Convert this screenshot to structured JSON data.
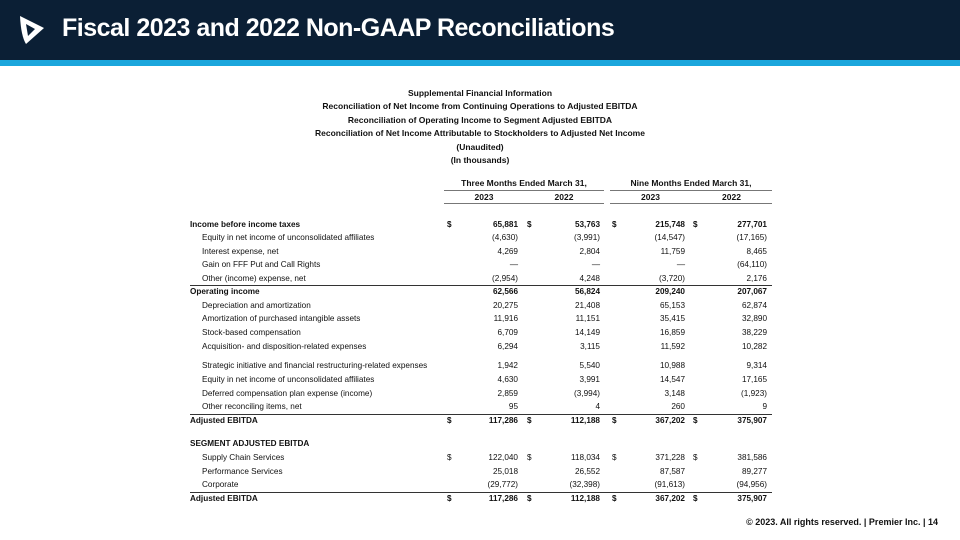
{
  "header": {
    "title": "Fiscal 2023 and 2022 Non-GAAP Reconciliations",
    "logo": "premier-logo"
  },
  "subtitles": [
    "Supplemental Financial Information",
    "Reconciliation of Net Income from Continuing Operations to Adjusted EBITDA",
    "Reconciliation of Operating Income to Segment Adjusted EBITDA",
    "Reconciliation of Net Income Attributable to Stockholders to Adjusted Net Income",
    "(Unaudited)",
    "(In thousands)"
  ],
  "columns": {
    "three_months": "Three Months Ended March 31,",
    "nine_months": "Nine Months Ended March 31,",
    "years": [
      "2023",
      "2022",
      "2023",
      "2022"
    ]
  },
  "rows": [
    {
      "label": "Income before income taxes",
      "bold": true,
      "dollar": true,
      "values": [
        "65,881",
        "53,763",
        "215,748",
        "277,701"
      ]
    },
    {
      "label": "Equity in net income of unconsolidated affiliates",
      "values": [
        "(4,630)",
        "(3,991)",
        "(14,547)",
        "(17,165)"
      ]
    },
    {
      "label": "Interest expense, net",
      "values": [
        "4,269",
        "2,804",
        "11,759",
        "8,465"
      ]
    },
    {
      "label": "Gain on FFF Put and Call Rights",
      "values": [
        "—",
        "—",
        "—",
        "(64,110)"
      ]
    },
    {
      "label": "Other (income) expense, net",
      "values": [
        "(2,954)",
        "4,248",
        "(3,720)",
        "2,176"
      ]
    },
    {
      "label": "Operating income",
      "bold": true,
      "rule": true,
      "values": [
        "62,566",
        "56,824",
        "209,240",
        "207,067"
      ]
    },
    {
      "label": "Depreciation and amortization",
      "values": [
        "20,275",
        "21,408",
        "65,153",
        "62,874"
      ]
    },
    {
      "label": "Amortization of purchased intangible assets",
      "values": [
        "11,916",
        "11,151",
        "35,415",
        "32,890"
      ]
    },
    {
      "label": "Stock-based compensation",
      "values": [
        "6,709",
        "14,149",
        "16,859",
        "38,229"
      ]
    },
    {
      "label": "Acquisition- and disposition-related expenses",
      "values": [
        "6,294",
        "3,115",
        "11,592",
        "10,282"
      ]
    },
    {
      "label": "Strategic initiative and financial restructuring-related expenses",
      "values": [
        "1,942",
        "5,540",
        "10,988",
        "9,314"
      ]
    },
    {
      "label": "Equity in net income of unconsolidated affiliates",
      "values": [
        "4,630",
        "3,991",
        "14,547",
        "17,165"
      ]
    },
    {
      "label": "Deferred compensation plan expense (income)",
      "values": [
        "2,859",
        "(3,994)",
        "3,148",
        "(1,923)"
      ]
    },
    {
      "label": "Other reconciling items, net",
      "values": [
        "95",
        "4",
        "260",
        "9"
      ]
    },
    {
      "label": "Adjusted EBITDA",
      "bold": true,
      "rule": true,
      "dollar": true,
      "values": [
        "117,286",
        "112,188",
        "367,202",
        "375,907"
      ]
    },
    {
      "label": "SEGMENT ADJUSTED EBITDA",
      "bold": true,
      "values": []
    },
    {
      "label": "Supply Chain Services",
      "dollar": true,
      "values": [
        "122,040",
        "118,034",
        "371,228",
        "381,586"
      ]
    },
    {
      "label": "Performance Services",
      "values": [
        "25,018",
        "26,552",
        "87,587",
        "89,277"
      ]
    },
    {
      "label": "Corporate",
      "values": [
        "(29,772)",
        "(32,398)",
        "(91,613)",
        "(94,956)"
      ]
    },
    {
      "label": "Adjusted EBITDA",
      "bold": true,
      "rule": true,
      "dollar": true,
      "values": [
        "117,286",
        "112,188",
        "367,202",
        "375,907"
      ]
    }
  ],
  "dollar_sign": "$",
  "footer": "© 2023. All rights reserved.  |  Premier Inc.  |  14"
}
